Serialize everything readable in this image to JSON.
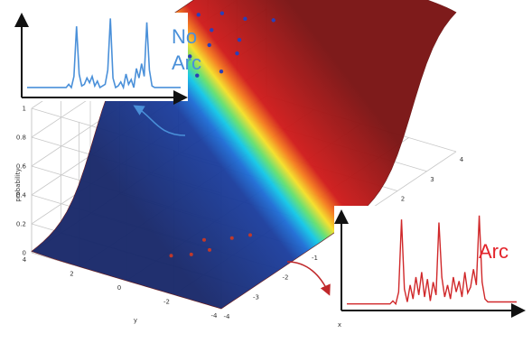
{
  "chart_data": [
    {
      "type": "surface",
      "xlabel": "x",
      "ylabel": "y",
      "zlabel": "probability",
      "x_ticks": [
        "-4",
        "-3",
        "-2",
        "-1",
        "0",
        "1",
        "2",
        "3",
        "4"
      ],
      "y_ticks": [
        "-4",
        "-2",
        "0",
        "2",
        "4"
      ],
      "z_ticks": [
        "0",
        "0.2",
        "0.4",
        "0.6",
        "0.8",
        "1"
      ],
      "xlim": [
        -4,
        4
      ],
      "ylim": [
        -4,
        4
      ],
      "zlim": [
        0,
        1
      ],
      "surface": "logistic transition from probability 0 to 1 across the domain",
      "colormap": "jet",
      "points": {
        "high_probability": {
          "color": "#2a3fb8",
          "values": [
            {
              "x": -0.5,
              "y": 3.2,
              "z": 0.95
            },
            {
              "x": -0.2,
              "y": 2.8,
              "z": 0.9
            },
            {
              "x": 0.1,
              "y": 2.4,
              "z": 0.88
            },
            {
              "x": 0.4,
              "y": 3.0,
              "z": 0.92
            },
            {
              "x": -0.8,
              "y": 2.0,
              "z": 0.85
            },
            {
              "x": 0.6,
              "y": 2.2,
              "z": 0.9
            },
            {
              "x": 1.0,
              "y": 2.6,
              "z": 0.93
            },
            {
              "x": 1.3,
              "y": 1.8,
              "z": 0.86
            },
            {
              "x": 1.6,
              "y": 2.9,
              "z": 0.95
            },
            {
              "x": 0.9,
              "y": 1.4,
              "z": 0.84
            },
            {
              "x": 1.9,
              "y": 2.3,
              "z": 0.9
            },
            {
              "x": 2.3,
              "y": 1.6,
              "z": 0.87
            },
            {
              "x": 0.2,
              "y": 1.2,
              "z": 0.82
            },
            {
              "x": -0.3,
              "y": 1.6,
              "z": 0.84
            },
            {
              "x": 2.6,
              "y": 2.7,
              "z": 0.94
            },
            {
              "x": 1.2,
              "y": 3.4,
              "z": 0.97
            },
            {
              "x": -1.2,
              "y": 2.6,
              "z": 0.86
            },
            {
              "x": 3.0,
              "y": 3.1,
              "z": 0.96
            }
          ]
        },
        "low_probability": {
          "color": "#c0392b",
          "values": [
            {
              "x": -2.6,
              "y": -1.0,
              "z": 0.04
            },
            {
              "x": -2.3,
              "y": -1.4,
              "z": 0.05
            },
            {
              "x": -2.0,
              "y": -0.8,
              "z": 0.05
            },
            {
              "x": -1.7,
              "y": -1.6,
              "z": 0.06
            },
            {
              "x": -2.8,
              "y": -0.4,
              "z": 0.03
            },
            {
              "x": -1.4,
              "y": -2.0,
              "z": 0.06
            }
          ]
        }
      }
    },
    {
      "type": "line",
      "name": "No Arc",
      "x": [
        0,
        1,
        2,
        3,
        4,
        5,
        6,
        7,
        8,
        9,
        10,
        11,
        12,
        13,
        14,
        15,
        16,
        17,
        18,
        19,
        20,
        21,
        22,
        23,
        24,
        25,
        26,
        27,
        28,
        29,
        30,
        31,
        32,
        33,
        34,
        35,
        36,
        37,
        38,
        39,
        40,
        41,
        42,
        43,
        44,
        45,
        46,
        47,
        48,
        49,
        50,
        51,
        52,
        53,
        54,
        55,
        56,
        57,
        58,
        59
      ],
      "values": [
        0.08,
        0.08,
        0.08,
        0.08,
        0.08,
        0.08,
        0.08,
        0.08,
        0.08,
        0.08,
        0.08,
        0.08,
        0.08,
        0.08,
        0.08,
        0.08,
        0.12,
        0.08,
        0.22,
        0.85,
        0.25,
        0.1,
        0.12,
        0.2,
        0.14,
        0.22,
        0.1,
        0.16,
        0.08,
        0.1,
        0.12,
        0.3,
        0.95,
        0.2,
        0.08,
        0.1,
        0.15,
        0.08,
        0.25,
        0.12,
        0.18,
        0.08,
        0.32,
        0.2,
        0.38,
        0.22,
        0.9,
        0.3,
        0.1,
        0.08,
        0.08,
        0.08,
        0.08,
        0.08,
        0.08,
        0.08,
        0.08,
        0.08,
        0.08,
        0.08
      ],
      "color": "#4a90d9"
    },
    {
      "type": "line",
      "name": "Arc",
      "x": [
        0,
        1,
        2,
        3,
        4,
        5,
        6,
        7,
        8,
        9,
        10,
        11,
        12,
        13,
        14,
        15,
        16,
        17,
        18,
        19,
        20,
        21,
        22,
        23,
        24,
        25,
        26,
        27,
        28,
        29,
        30,
        31,
        32,
        33,
        34,
        35,
        36,
        37,
        38,
        39,
        40,
        41,
        42,
        43,
        44,
        45,
        46,
        47,
        48,
        49,
        50,
        51,
        52,
        53,
        54,
        55,
        56,
        57,
        58,
        59
      ],
      "values": [
        0.03,
        0.03,
        0.03,
        0.03,
        0.03,
        0.03,
        0.03,
        0.03,
        0.03,
        0.03,
        0.03,
        0.03,
        0.03,
        0.03,
        0.03,
        0.03,
        0.06,
        0.03,
        0.15,
        0.88,
        0.18,
        0.05,
        0.22,
        0.08,
        0.3,
        0.12,
        0.35,
        0.1,
        0.28,
        0.06,
        0.25,
        0.12,
        0.85,
        0.3,
        0.1,
        0.22,
        0.08,
        0.3,
        0.15,
        0.26,
        0.1,
        0.35,
        0.14,
        0.2,
        0.38,
        0.22,
        0.92,
        0.25,
        0.08,
        0.05,
        0.05,
        0.05,
        0.05,
        0.05,
        0.05,
        0.05,
        0.05,
        0.05,
        0.05,
        0.05
      ],
      "color": "#d0282a"
    }
  ],
  "labels": {
    "no_arc_line1": "No",
    "no_arc_line2": "Arc",
    "arc": "Arc"
  },
  "colors": {
    "no_arc": "#4a90d9",
    "arc": "#e3242b",
    "grid": "#c8c8c8"
  }
}
